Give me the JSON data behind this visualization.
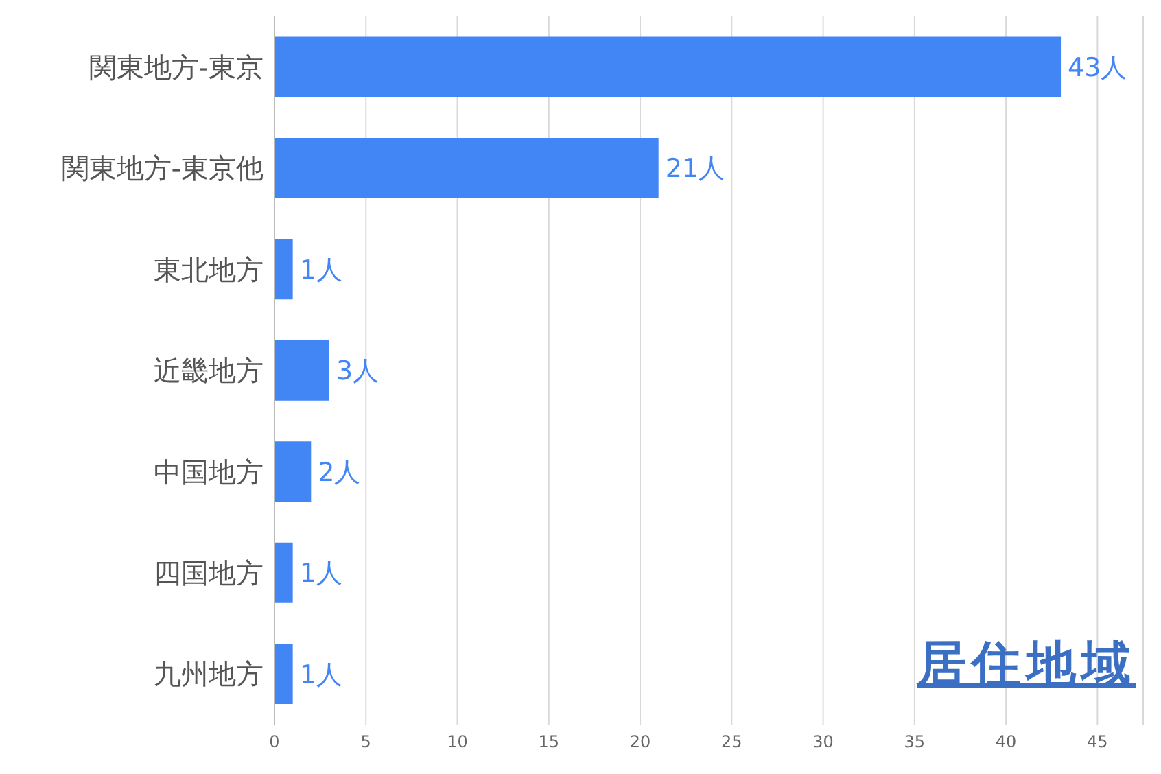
{
  "chart_data": {
    "type": "bar",
    "orientation": "horizontal",
    "title": "居住地域",
    "categories": [
      "関東地方-東京",
      "関東地方-東京他",
      "東北地方",
      "近畿地方",
      "中国地方",
      "四国地方",
      "九州地方"
    ],
    "values": [
      43,
      21,
      1,
      3,
      2,
      1,
      1
    ],
    "value_labels": [
      "43人",
      "21人",
      "1人",
      "3人",
      "2人",
      "1人",
      "1人"
    ],
    "color": "#4285f4",
    "xlim": [
      0,
      47.5
    ],
    "xticks": [
      0,
      5,
      10,
      15,
      20,
      25,
      30,
      35,
      40,
      45
    ],
    "grid": "x"
  }
}
